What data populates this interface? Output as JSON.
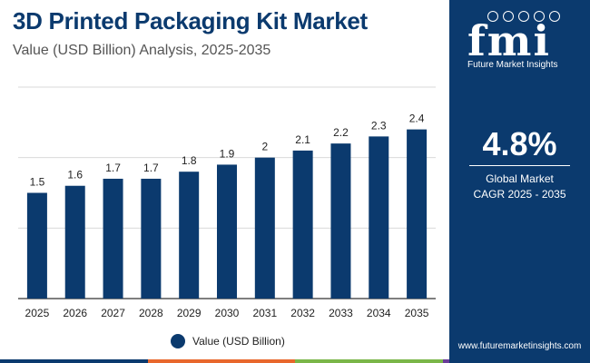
{
  "header": {
    "title": "3D Printed Packaging Kit Market",
    "subtitle": "Value (USD Billion) Analysis, 2025-2035"
  },
  "chart_data": {
    "type": "bar",
    "categories": [
      "2025",
      "2026",
      "2027",
      "2028",
      "2029",
      "2030",
      "2031",
      "2032",
      "2033",
      "2034",
      "2035"
    ],
    "series": [
      {
        "name": "Value (USD Billion)",
        "values": [
          1.5,
          1.6,
          1.7,
          1.7,
          1.8,
          1.9,
          2,
          2.1,
          2.2,
          2.3,
          2.4
        ]
      }
    ],
    "value_labels": [
      "1.5",
      "1.6",
      "1.7",
      "1.7",
      "1.8",
      "1.9",
      "2",
      "2.1",
      "2.2",
      "2.3",
      "2.4"
    ],
    "title": "3D Printed Packaging Kit Market",
    "xlabel": "",
    "ylabel": "",
    "ylim": [
      0,
      3
    ],
    "grid": true,
    "legend_position": "bottom"
  },
  "legend": {
    "label": "Value (USD Billion)"
  },
  "side_panel": {
    "logo_mark": "fmi",
    "logo_text": "Future Market Insights",
    "cagr_value": "4.8%",
    "cagr_label_1": "Global Market",
    "cagr_label_2": "CAGR 2025 - 2035",
    "website": "www.futuremarketinsights.com"
  },
  "colors": {
    "bar": "#0b3a6e",
    "panel": "#0b3a6e",
    "title": "#0b3a6e",
    "grid": "#d9d9d9",
    "bottom_bar": [
      "#0b3a6e",
      "#e8672c",
      "#7ab648",
      "#6a3d9a"
    ]
  }
}
